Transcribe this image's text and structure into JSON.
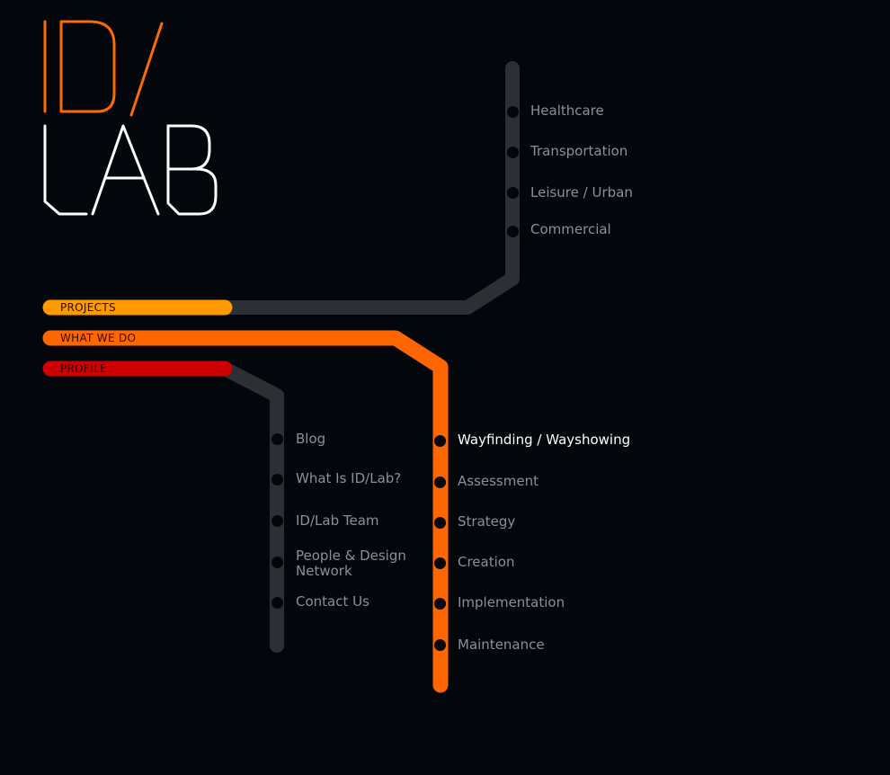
{
  "brand": {
    "logo_line1": "ID/",
    "logo_line2": "LAB",
    "accent_color": "#ff6a00",
    "logo_text_color": "#ffffff"
  },
  "colors": {
    "background": "#03060b",
    "track_gray": "#2c2f33",
    "projects_line": "#ff9900",
    "whatwedo_line": "#ff6600",
    "profile_line": "#cc0000",
    "stop_text": "#8c9096",
    "active_stop_text": "#ffffff"
  },
  "nav": {
    "projects": {
      "label": "PROJECTS",
      "items": [
        "Healthcare",
        "Transportation",
        "Leisure / Urban",
        "Commercial"
      ]
    },
    "what_we_do": {
      "label": "WHAT WE DO",
      "active_item": "Wayfinding / Wayshowing",
      "items": [
        "Wayfinding / Wayshowing",
        "Assessment",
        "Strategy",
        "Creation",
        "Implementation",
        "Maintenance"
      ]
    },
    "profile": {
      "label": "PROFILE",
      "items": [
        "Blog",
        "What Is ID/Lab?",
        "ID/Lab Team",
        "People & Design",
        "Network",
        "Contact Us"
      ]
    }
  }
}
